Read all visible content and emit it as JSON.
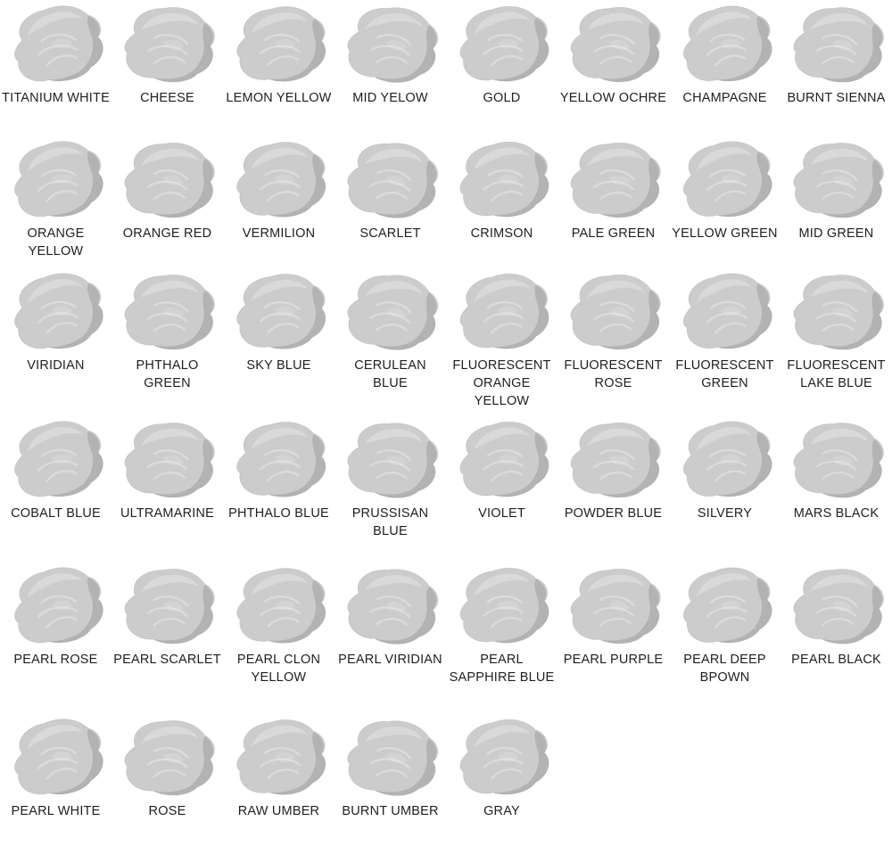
{
  "page": {
    "background": "#ffffff"
  },
  "grid": {
    "rows": [
      {
        "swatches": [
          {
            "label": "TITANIUM WHITE",
            "color": "#f3f3f3"
          },
          {
            "label": "CHEESE",
            "color": "#e9e43c"
          },
          {
            "label": "LEMON YELLOW",
            "color": "#f7d91c"
          },
          {
            "label": "MID YELOW",
            "color": "#f3b91e"
          },
          {
            "label": "GOLD",
            "color": "#f0b042"
          },
          {
            "label": "YELLOW OCHRE",
            "color": "#eda42e"
          },
          {
            "label": "CHAMPAGNE",
            "color": "#f4cfa4"
          },
          {
            "label": "BURNT SIENNA",
            "color": "#c25532"
          }
        ]
      },
      {
        "swatches": [
          {
            "label": "ORANGE YELLOW",
            "color": "#f58232"
          },
          {
            "label": "ORANGE RED",
            "color": "#f4653c"
          },
          {
            "label": "VERMILION",
            "color": "#f45f38"
          },
          {
            "label": "SCARLET",
            "color": "#f4514b"
          },
          {
            "label": "CRIMSON",
            "color": "#ef4563"
          },
          {
            "label": "PALE GREEN",
            "color": "#5ec878"
          },
          {
            "label": "YELLOW GREEN",
            "color": "#7dc45c"
          },
          {
            "label": "MID GREEN",
            "color": "#2fc470"
          }
        ]
      },
      {
        "swatches": [
          {
            "label": "VIRIDIAN",
            "color": "#28c08d"
          },
          {
            "label": "PHTHALO GREEN",
            "color": "#1e8da6"
          },
          {
            "label": "SKY BLUE",
            "color": "#55c4e9"
          },
          {
            "label": "CERULEAN BLUE",
            "color": "#38ade4"
          },
          {
            "label": "FLUORESCENT ORANGE YELLOW",
            "color": "#f59a3c"
          },
          {
            "label": "FLUORESCENT ROSE",
            "color": "#f23f86"
          },
          {
            "label": "FLUORESCENT GREEN",
            "color": "#54cd7c"
          },
          {
            "label": "FLUORESCENT LAKE BLUE",
            "color": "#30b9e6"
          }
        ]
      },
      {
        "swatches": [
          {
            "label": "COBALT BLUE",
            "color": "#4b93e6"
          },
          {
            "label": "ULTRAMARINE",
            "color": "#3f6ce2"
          },
          {
            "label": "PHTHALO BLUE",
            "color": "#2836d8"
          },
          {
            "label": "PRUSSISAN BLUE",
            "color": "#4a5bce"
          },
          {
            "label": "VIOLET",
            "color": "#5a4eca"
          },
          {
            "label": "POWDER BLUE",
            "color": "#dfe8f3"
          },
          {
            "label": "SILVERY",
            "color": "#e9edf1"
          },
          {
            "label": "MARS BLACK",
            "color": "#272c42"
          }
        ]
      },
      {
        "swatches": [
          {
            "label": "PEARL ROSE",
            "color": "#ee5574"
          },
          {
            "label": "PEARL SCARLET",
            "color": "#f06062"
          },
          {
            "label": "PEARL CLON YELLOW",
            "color": "#ecd83e"
          },
          {
            "label": "PEARL VIRIDIAN",
            "color": "#3ed6a1"
          },
          {
            "label": "PEARL SAPPHIRE BLUE",
            "color": "#3b7ad8"
          },
          {
            "label": "PEARL PURPLE",
            "color": "#6c5ae2"
          },
          {
            "label": "PEARL DEEP BPOWN",
            "color": "#9d6c4b"
          },
          {
            "label": "PEARL BLACK",
            "color": "#aab7c4"
          }
        ]
      },
      {
        "swatches": [
          {
            "label": "PEARL WHITE",
            "color": "#f2f2f2"
          },
          {
            "label": "ROSE",
            "color": "#ee40c1"
          },
          {
            "label": "RAW UMBER",
            "color": "#67463c"
          },
          {
            "label": "BURNT UMBER",
            "color": "#76544b"
          },
          {
            "label": "GRAY",
            "color": "#e2e2e2"
          }
        ]
      }
    ]
  }
}
